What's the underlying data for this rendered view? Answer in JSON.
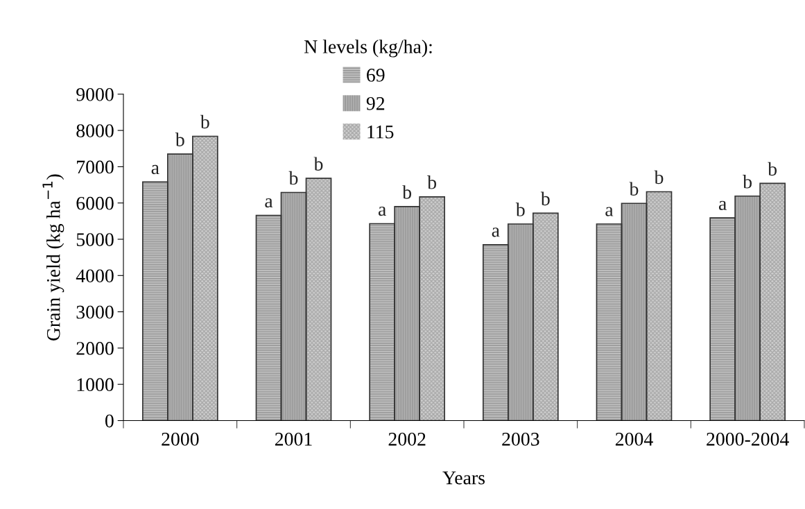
{
  "chart_data": {
    "type": "bar",
    "xlabel": "Years",
    "ylabel": "Grain yield (kg ha$^{−1}$)",
    "legend_title": "N levels (kg/ha):",
    "categories": [
      "2000",
      "2001",
      "2002",
      "2003",
      "2004",
      "2000-2004"
    ],
    "series": [
      {
        "name": "69",
        "color": "#c0c0c0",
        "values": [
          6580,
          5660,
          5430,
          4850,
          5420,
          5590
        ],
        "value_labels": [
          "a",
          "a",
          "a",
          "a",
          "a",
          "a"
        ]
      },
      {
        "name": "92",
        "color": "#b0b0b0",
        "values": [
          7350,
          6290,
          5900,
          5420,
          5990,
          6190
        ],
        "value_labels": [
          "b",
          "b",
          "b",
          "b",
          "b",
          "b"
        ]
      },
      {
        "name": "115",
        "color": "#d0d0d0",
        "values": [
          7840,
          6680,
          6170,
          5720,
          6310,
          6540
        ],
        "value_labels": [
          "b",
          "b",
          "b",
          "b",
          "b",
          "b"
        ]
      }
    ],
    "ylim": [
      0,
      9000
    ],
    "yticks": [
      0,
      1000,
      2000,
      3000,
      4000,
      5000,
      6000,
      7000,
      8000,
      9000
    ],
    "grid": false,
    "legend": "top"
  }
}
